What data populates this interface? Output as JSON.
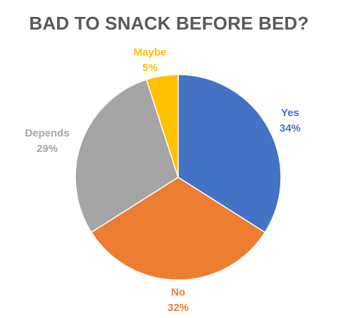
{
  "chart_data": {
    "type": "pie",
    "title": "BAD TO SNACK BEFORE BED?",
    "slices": [
      {
        "label": "Yes",
        "value": 34,
        "display": "34%",
        "color": "#4472C4"
      },
      {
        "label": "No",
        "value": 32,
        "display": "32%",
        "color": "#ED7D31"
      },
      {
        "label": "Depends",
        "value": 29,
        "display": "29%",
        "color": "#A5A5A5"
      },
      {
        "label": "Maybe",
        "value": 5,
        "display": "5%",
        "color": "#FFC000"
      }
    ],
    "start_angle_deg": 0,
    "direction": "clockwise",
    "legend": "none",
    "data_labels": "outside"
  }
}
